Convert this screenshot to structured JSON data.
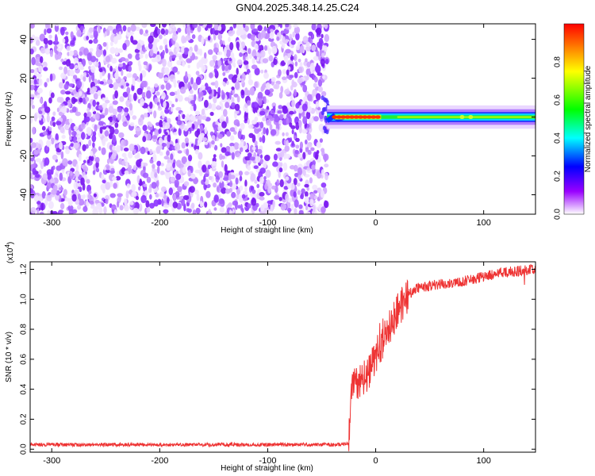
{
  "title": "GN04.2025.348.14.25.C24",
  "chart_data": [
    {
      "type": "heatmap",
      "xlabel": "Height of straight line (km)",
      "ylabel": "Frequency (Hz)",
      "xlim": [
        -320,
        148
      ],
      "ylim": [
        -50,
        48
      ],
      "xticks": [
        -300,
        -200,
        -100,
        0,
        100
      ],
      "yticks": [
        -40,
        -20,
        0,
        20,
        40
      ],
      "colorbar": {
        "label": "Normalized spectral amplitude",
        "range": [
          0,
          1
        ],
        "ticks": [
          "0.0",
          "0.2",
          "0.4",
          "0.6",
          "0.8"
        ],
        "colors": [
          "#ffffff",
          "#9900ff",
          "#0000ff",
          "#00ffff",
          "#00ff00",
          "#ffff00",
          "#ff0000"
        ]
      },
      "regions": [
        {
          "name": "noise",
          "x": [
            -320,
            -45
          ],
          "y": [
            -50,
            48
          ],
          "amplitude": [
            0.0,
            0.2
          ]
        },
        {
          "name": "signal",
          "x": [
            -45,
            148
          ],
          "y": [
            -3,
            3
          ],
          "amplitude": [
            0.3,
            1.0
          ]
        }
      ],
      "peak": {
        "x": [
          -38,
          5
        ],
        "y": 0,
        "amplitude": 0.95
      }
    },
    {
      "type": "line",
      "xlabel": "Height of straight line (km)",
      "ylabel": "SNR (10 * v/v)",
      "yscale_label": "(x10",
      "yscale_exp": "4",
      "xlim": [
        -320,
        148
      ],
      "ylim": [
        -0.02,
        1.25
      ],
      "xticks": [
        -300,
        -200,
        -100,
        0,
        100
      ],
      "yticks": [
        "0.0",
        "0.2",
        "0.4",
        "0.6",
        "0.8",
        "1.0",
        "1.2"
      ],
      "color": "#ee3333",
      "trend": {
        "x": [
          -320,
          -35,
          -25,
          -22,
          -15,
          -5,
          0,
          10,
          20,
          30,
          40,
          60,
          80,
          100,
          120,
          148
        ],
        "y": [
          0.03,
          0.03,
          0.04,
          0.45,
          0.45,
          0.52,
          0.62,
          0.78,
          0.92,
          1.03,
          1.08,
          1.1,
          1.12,
          1.15,
          1.18,
          1.2
        ]
      }
    }
  ]
}
